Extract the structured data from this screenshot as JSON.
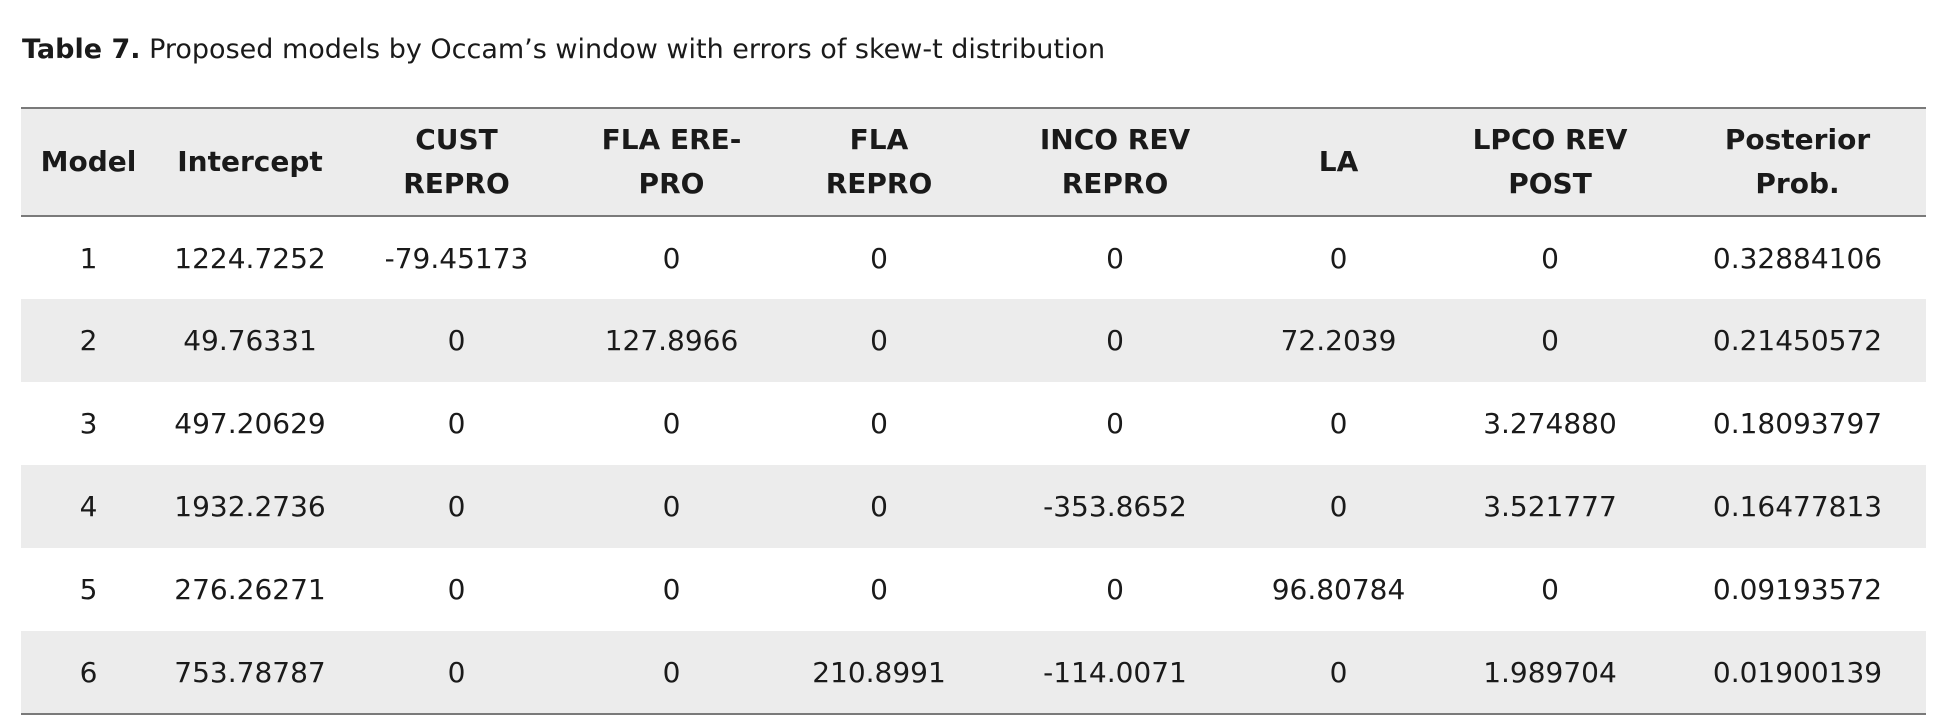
{
  "caption": {
    "label": "Table 7.",
    "text": " Proposed models by Occam’s window with errors of skew-t distribution"
  },
  "table": {
    "headers": [
      [
        "Model"
      ],
      [
        "Intercept"
      ],
      [
        "CUST",
        "REPRO"
      ],
      [
        "FLA ERE-",
        "PRO"
      ],
      [
        "FLA",
        "REPRO"
      ],
      [
        "INCO REV",
        "REPRO"
      ],
      [
        "LA"
      ],
      [
        "LPCO REV",
        "POST"
      ],
      [
        "Posterior",
        "Prob."
      ]
    ],
    "rows": [
      [
        "1",
        "1224.7252",
        "-79.45173",
        "0",
        "0",
        "0",
        "0",
        "0",
        "0.32884106"
      ],
      [
        "2",
        "49.76331",
        "0",
        "127.8966",
        "0",
        "0",
        "72.2039",
        "0",
        "0.21450572"
      ],
      [
        "3",
        "497.20629",
        "0",
        "0",
        "0",
        "0",
        "0",
        "3.274880",
        "0.18093797"
      ],
      [
        "4",
        "1932.2736",
        "0",
        "0",
        "0",
        "-353.8652",
        "0",
        "3.521777",
        "0.16477813"
      ],
      [
        "5",
        "276.26271",
        "0",
        "0",
        "0",
        "0",
        "96.80784",
        "0",
        "0.09193572"
      ],
      [
        "6",
        "753.78787",
        "0",
        "0",
        "210.8991",
        "-114.0071",
        "0",
        "1.989704",
        "0.01900139"
      ]
    ]
  }
}
